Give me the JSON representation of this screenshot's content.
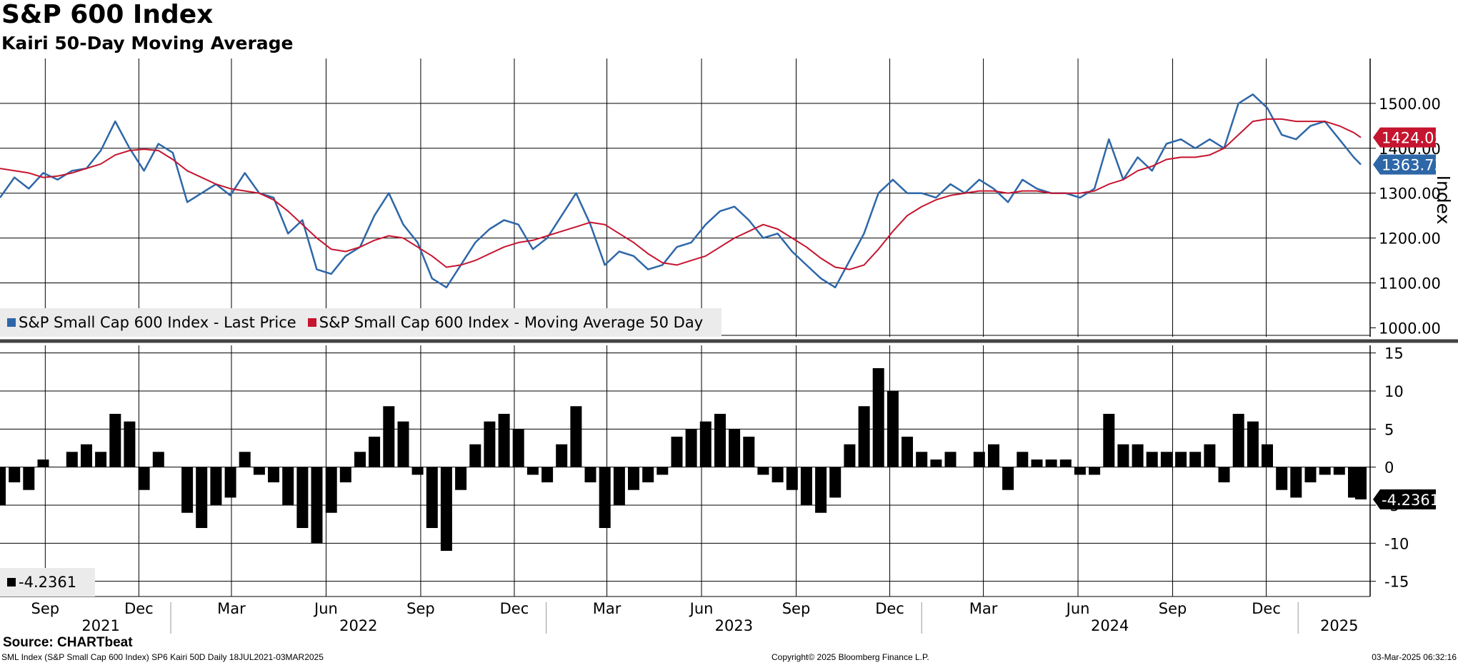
{
  "title": "S&P 600 Index",
  "subtitle": "Kairi 50-Day Moving Average",
  "source": "Source: CHARTbeat",
  "footer": {
    "left": "SML Index (S&P Small Cap 600 Index) SP6 Kairi 50D  Daily 18JUL2021-03MAR2025",
    "middle": "Copyright© 2025 Bloomberg Finance L.P.",
    "right": "03-Mar-2025 06:32:16"
  },
  "colors": {
    "price": "#2e67a8",
    "ma": "#c5152f",
    "kairi": "#000000",
    "grid": "#000000"
  },
  "chart_data": [
    {
      "type": "line",
      "panel": "upper",
      "ylabel": "Index",
      "ylim": [
        980,
        1600
      ],
      "yticks": [
        1000,
        1100,
        1200,
        1300,
        1400,
        1500
      ],
      "ytick_labels": [
        "1000.00",
        "1100.00",
        "1200.00",
        "1300.00",
        "1400.00",
        "1500.00"
      ],
      "grid": true,
      "legend_position": "bottom-left",
      "x": [
        "2021-07-19",
        "2021-08-02",
        "2021-08-16",
        "2021-08-30",
        "2021-09-13",
        "2021-09-27",
        "2021-10-11",
        "2021-10-25",
        "2021-11-08",
        "2021-11-22",
        "2021-12-06",
        "2021-12-20",
        "2022-01-03",
        "2022-01-17",
        "2022-01-31",
        "2022-02-14",
        "2022-02-28",
        "2022-03-14",
        "2022-03-28",
        "2022-04-11",
        "2022-04-25",
        "2022-05-09",
        "2022-05-23",
        "2022-06-06",
        "2022-06-20",
        "2022-07-04",
        "2022-07-18",
        "2022-08-01",
        "2022-08-15",
        "2022-08-29",
        "2022-09-12",
        "2022-09-26",
        "2022-10-10",
        "2022-10-24",
        "2022-11-07",
        "2022-11-21",
        "2022-12-05",
        "2022-12-19",
        "2023-01-02",
        "2023-01-16",
        "2023-01-30",
        "2023-02-13",
        "2023-02-27",
        "2023-03-13",
        "2023-03-27",
        "2023-04-10",
        "2023-04-24",
        "2023-05-08",
        "2023-05-22",
        "2023-06-05",
        "2023-06-19",
        "2023-07-03",
        "2023-07-17",
        "2023-07-31",
        "2023-08-14",
        "2023-08-28",
        "2023-09-11",
        "2023-09-25",
        "2023-10-09",
        "2023-10-23",
        "2023-11-06",
        "2023-11-20",
        "2023-12-04",
        "2023-12-18",
        "2024-01-01",
        "2024-01-15",
        "2024-01-29",
        "2024-02-12",
        "2024-02-26",
        "2024-03-11",
        "2024-03-25",
        "2024-04-08",
        "2024-04-22",
        "2024-05-06",
        "2024-05-20",
        "2024-06-03",
        "2024-06-17",
        "2024-07-01",
        "2024-07-15",
        "2024-07-29",
        "2024-08-12",
        "2024-08-26",
        "2024-09-09",
        "2024-09-23",
        "2024-10-07",
        "2024-10-21",
        "2024-11-04",
        "2024-11-18",
        "2024-12-02",
        "2024-12-16",
        "2024-12-30",
        "2025-01-13",
        "2025-01-27",
        "2025-02-10",
        "2025-02-24",
        "2025-03-03"
      ],
      "series": [
        {
          "name": "S&P Small Cap 600 Index - Last Price",
          "last_value_label": "1363.73",
          "values": [
            1290,
            1335,
            1310,
            1345,
            1330,
            1350,
            1355,
            1395,
            1460,
            1400,
            1350,
            1410,
            1390,
            1280,
            1300,
            1320,
            1295,
            1345,
            1300,
            1290,
            1210,
            1240,
            1130,
            1120,
            1160,
            1180,
            1250,
            1300,
            1230,
            1190,
            1110,
            1090,
            1140,
            1190,
            1220,
            1240,
            1230,
            1175,
            1200,
            1250,
            1300,
            1230,
            1140,
            1170,
            1160,
            1130,
            1140,
            1180,
            1190,
            1230,
            1260,
            1270,
            1240,
            1200,
            1210,
            1170,
            1140,
            1110,
            1090,
            1150,
            1210,
            1300,
            1330,
            1300,
            1300,
            1290,
            1320,
            1300,
            1330,
            1310,
            1280,
            1330,
            1310,
            1300,
            1300,
            1290,
            1310,
            1420,
            1330,
            1380,
            1350,
            1410,
            1420,
            1400,
            1420,
            1400,
            1500,
            1520,
            1490,
            1430,
            1420,
            1450,
            1460,
            1420,
            1380,
            1363.73
          ]
        },
        {
          "name": "S&P Small Cap 600 Index - Moving Average 50 Day",
          "last_value_label": "1424.05",
          "values": [
            1355,
            1350,
            1345,
            1335,
            1338,
            1345,
            1355,
            1365,
            1385,
            1395,
            1398,
            1395,
            1375,
            1350,
            1335,
            1320,
            1310,
            1305,
            1300,
            1285,
            1260,
            1230,
            1200,
            1175,
            1170,
            1180,
            1195,
            1205,
            1200,
            1180,
            1160,
            1135,
            1140,
            1150,
            1165,
            1180,
            1190,
            1195,
            1205,
            1215,
            1225,
            1235,
            1230,
            1210,
            1190,
            1165,
            1145,
            1140,
            1150,
            1160,
            1180,
            1200,
            1215,
            1230,
            1220,
            1200,
            1180,
            1155,
            1135,
            1130,
            1140,
            1175,
            1215,
            1250,
            1270,
            1285,
            1295,
            1300,
            1305,
            1305,
            1300,
            1305,
            1305,
            1300,
            1300,
            1300,
            1305,
            1320,
            1330,
            1350,
            1360,
            1375,
            1380,
            1380,
            1385,
            1400,
            1430,
            1460,
            1465,
            1465,
            1460,
            1460,
            1460,
            1450,
            1435,
            1424.05
          ]
        }
      ]
    },
    {
      "type": "bar",
      "panel": "lower",
      "ylim": [
        -17,
        16
      ],
      "yticks": [
        -15,
        -10,
        -5,
        0,
        5,
        10,
        15
      ],
      "ytick_labels": [
        "-15",
        "-10",
        "-5",
        "0",
        "5",
        "10",
        "15"
      ],
      "grid": true,
      "legend_position": "bottom-left",
      "series": [
        {
          "name": "-4.2361",
          "last_value_label": "-4.2361",
          "x": [
            "2021-07-19",
            "2021-08-02",
            "2021-08-16",
            "2021-08-30",
            "2021-09-13",
            "2021-09-27",
            "2021-10-11",
            "2021-10-25",
            "2021-11-08",
            "2021-11-22",
            "2021-12-06",
            "2021-12-20",
            "2022-01-03",
            "2022-01-17",
            "2022-01-31",
            "2022-02-14",
            "2022-02-28",
            "2022-03-14",
            "2022-03-28",
            "2022-04-11",
            "2022-04-25",
            "2022-05-09",
            "2022-05-23",
            "2022-06-06",
            "2022-06-20",
            "2022-07-04",
            "2022-07-18",
            "2022-08-01",
            "2022-08-15",
            "2022-08-29",
            "2022-09-12",
            "2022-09-26",
            "2022-10-10",
            "2022-10-24",
            "2022-11-07",
            "2022-11-21",
            "2022-12-05",
            "2022-12-19",
            "2023-01-02",
            "2023-01-16",
            "2023-01-30",
            "2023-02-13",
            "2023-02-27",
            "2023-03-13",
            "2023-03-27",
            "2023-04-10",
            "2023-04-24",
            "2023-05-08",
            "2023-05-22",
            "2023-06-05",
            "2023-06-19",
            "2023-07-03",
            "2023-07-17",
            "2023-07-31",
            "2023-08-14",
            "2023-08-28",
            "2023-09-11",
            "2023-09-25",
            "2023-10-09",
            "2023-10-23",
            "2023-11-06",
            "2023-11-20",
            "2023-12-04",
            "2023-12-18",
            "2024-01-01",
            "2024-01-15",
            "2024-01-29",
            "2024-02-12",
            "2024-02-26",
            "2024-03-11",
            "2024-03-25",
            "2024-04-08",
            "2024-04-22",
            "2024-05-06",
            "2024-05-20",
            "2024-06-03",
            "2024-06-17",
            "2024-07-01",
            "2024-07-15",
            "2024-07-29",
            "2024-08-12",
            "2024-08-26",
            "2024-09-09",
            "2024-09-23",
            "2024-10-07",
            "2024-10-21",
            "2024-11-04",
            "2024-11-18",
            "2024-12-02",
            "2024-12-16",
            "2024-12-30",
            "2025-01-13",
            "2025-01-27",
            "2025-02-10",
            "2025-02-24",
            "2025-03-03"
          ],
          "values": [
            -5,
            -2,
            -3,
            1,
            0,
            2,
            3,
            2,
            7,
            6,
            -3,
            2,
            0,
            -6,
            -8,
            -5,
            -4,
            2,
            -1,
            -2,
            -5,
            -8,
            -10,
            -6,
            -2,
            2,
            4,
            8,
            6,
            -1,
            -8,
            -11,
            -3,
            3,
            6,
            7,
            5,
            -1,
            -2,
            3,
            8,
            -2,
            -8,
            -5,
            -3,
            -2,
            -1,
            4,
            5,
            6,
            7,
            5,
            4,
            -1,
            -2,
            -3,
            -5,
            -6,
            -4,
            3,
            8,
            13,
            10,
            4,
            2,
            1,
            2,
            0,
            2,
            3,
            -3,
            2,
            1,
            1,
            1,
            -1,
            -1,
            7,
            3,
            3,
            2,
            2,
            2,
            2,
            3,
            -2,
            7,
            6,
            3,
            -3,
            -4,
            -2,
            -1,
            -1,
            -4,
            -4.2361
          ]
        }
      ]
    }
  ],
  "x_axis": {
    "months": [
      "Sep",
      "Dec",
      "Mar",
      "Jun",
      "Sep",
      "Dec",
      "Mar",
      "Jun",
      "Sep",
      "Dec",
      "Mar",
      "Jun",
      "Sep",
      "Dec"
    ],
    "years": [
      "2021",
      "2022",
      "2023",
      "2024",
      "2025"
    ]
  }
}
